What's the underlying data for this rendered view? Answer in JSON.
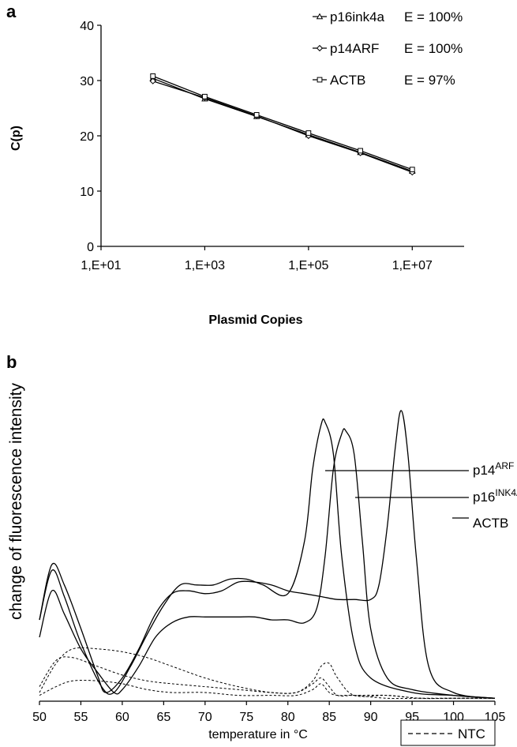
{
  "chart_data": [
    {
      "panel": "a",
      "type": "line",
      "x_scale": "log",
      "xlim": [
        10,
        100000000
      ],
      "ylim": [
        0,
        40
      ],
      "x_ticks": [
        10,
        1000,
        100000,
        10000000
      ],
      "x_tick_labels": [
        "1,E+01",
        "1,E+03",
        "1,E+05",
        "1,E+07"
      ],
      "y_ticks": [
        0,
        10,
        20,
        30,
        40
      ],
      "y_tick_labels": [
        "0",
        "10",
        "20",
        "30",
        "40"
      ],
      "xlabel": "Plasmid Copies",
      "ylabel": "C(p)",
      "legend_position": "top-right",
      "series": [
        {
          "name": "p16ink4a",
          "efficiency": "E = 100%",
          "marker": "triangle",
          "x": [
            100,
            1000,
            10000,
            100000,
            1000000,
            10000000
          ],
          "y": [
            30.4,
            26.7,
            23.5,
            20.2,
            17.0,
            13.6
          ]
        },
        {
          "name": "p14ARF",
          "efficiency": "E = 100%",
          "marker": "diamond",
          "x": [
            100,
            1000,
            10000,
            100000,
            1000000,
            10000000
          ],
          "y": [
            29.9,
            26.9,
            23.6,
            20.0,
            16.9,
            13.4
          ]
        },
        {
          "name": "ACTB",
          "efficiency": "E = 97%",
          "marker": "square",
          "x": [
            100,
            1000,
            10000,
            100000,
            1000000,
            10000000
          ],
          "y": [
            30.8,
            27.1,
            23.8,
            20.5,
            17.3,
            13.9
          ]
        }
      ]
    },
    {
      "panel": "b",
      "type": "line",
      "xlim": [
        50,
        105
      ],
      "x_ticks": [
        50,
        55,
        60,
        65,
        70,
        75,
        80,
        85,
        90,
        95,
        100,
        105
      ],
      "x_tick_labels": [
        "50",
        "55",
        "60",
        "65",
        "70",
        "75",
        "80",
        "85",
        "90",
        "95",
        "100",
        "105"
      ],
      "xlabel": "temperature in °C",
      "ylabel": "change of fluorescence intensity",
      "labels": {
        "p14": {
          "base": "p14",
          "sup": "ARF"
        },
        "p16": {
          "base": "p16",
          "sup": "INK4A"
        },
        "actb": "ACTB",
        "ntc": "NTC"
      },
      "series": [
        {
          "name": "p14ARF",
          "style": "solid",
          "peak_x": 84.5,
          "x": [
            50,
            51.5,
            53,
            55,
            57.5,
            59,
            61,
            63,
            65,
            67,
            69,
            71,
            73,
            75,
            77,
            80,
            82,
            83,
            84,
            84.5,
            85.5,
            86.5,
            88,
            90,
            95,
            100,
            105
          ],
          "y": [
            0.28,
            0.45,
            0.36,
            0.2,
            0.05,
            0.03,
            0.12,
            0.23,
            0.33,
            0.4,
            0.4,
            0.4,
            0.42,
            0.42,
            0.4,
            0.37,
            0.55,
            0.8,
            0.95,
            0.96,
            0.85,
            0.5,
            0.2,
            0.08,
            0.03,
            0.02,
            0.01
          ]
        },
        {
          "name": "p16INK4A",
          "style": "solid",
          "peak_x": 87,
          "x": [
            50,
            51.5,
            53,
            55,
            57,
            59,
            60,
            62,
            64,
            66,
            68,
            70,
            72,
            74,
            76,
            78,
            80,
            82,
            83.5,
            84.5,
            85.5,
            86.5,
            87,
            88,
            89,
            90,
            92,
            95,
            100,
            105
          ],
          "y": [
            0.22,
            0.38,
            0.3,
            0.18,
            0.1,
            0.03,
            0.04,
            0.12,
            0.22,
            0.27,
            0.29,
            0.29,
            0.29,
            0.29,
            0.29,
            0.28,
            0.28,
            0.27,
            0.32,
            0.5,
            0.8,
            0.92,
            0.93,
            0.85,
            0.55,
            0.25,
            0.08,
            0.04,
            0.02,
            0.01
          ]
        },
        {
          "name": "ACTB",
          "style": "solid",
          "peak_x": 93.7,
          "x": [
            50,
            51.5,
            53,
            55,
            57,
            58,
            60,
            62,
            64,
            66,
            68,
            70,
            72,
            74,
            76,
            78,
            80,
            82,
            84,
            86,
            88,
            90,
            91,
            92,
            93,
            93.7,
            94.5,
            95.5,
            97,
            100,
            105
          ],
          "y": [
            0.28,
            0.47,
            0.4,
            0.25,
            0.09,
            0.03,
            0.08,
            0.18,
            0.3,
            0.37,
            0.38,
            0.37,
            0.38,
            0.41,
            0.41,
            0.4,
            0.38,
            0.37,
            0.36,
            0.35,
            0.35,
            0.35,
            0.4,
            0.6,
            0.88,
            1.0,
            0.85,
            0.5,
            0.12,
            0.03,
            0.01
          ]
        },
        {
          "name": "NTC",
          "style": "dashed",
          "x": [
            50,
            52,
            54,
            57,
            60,
            63,
            66,
            70,
            74,
            78,
            81,
            83,
            84,
            85,
            86,
            88,
            92,
            96,
            100,
            105
          ],
          "y": [
            0.03,
            0.13,
            0.18,
            0.18,
            0.17,
            0.15,
            0.12,
            0.08,
            0.05,
            0.03,
            0.03,
            0.06,
            0.08,
            0.05,
            0.02,
            0.02,
            0.02,
            0.01,
            0.01,
            0.01
          ]
        },
        {
          "name": "NTC",
          "style": "dashed",
          "x": [
            50,
            52,
            54,
            57,
            60,
            63,
            66,
            70,
            74,
            78,
            81,
            83,
            84,
            85,
            86,
            88,
            92,
            96,
            100,
            105
          ],
          "y": [
            0.05,
            0.14,
            0.15,
            0.12,
            0.09,
            0.07,
            0.06,
            0.05,
            0.04,
            0.03,
            0.03,
            0.07,
            0.12,
            0.13,
            0.08,
            0.02,
            0.02,
            0.01,
            0.01,
            0.01
          ]
        },
        {
          "name": "NTC",
          "style": "dashed",
          "x": [
            50,
            52,
            54,
            57,
            60,
            63,
            66,
            70,
            74,
            78,
            81,
            83,
            84,
            85,
            86,
            88,
            92,
            96,
            100,
            105
          ],
          "y": [
            0.02,
            0.05,
            0.07,
            0.07,
            0.06,
            0.04,
            0.03,
            0.03,
            0.02,
            0.02,
            0.02,
            0.04,
            0.06,
            0.03,
            0.02,
            0.02,
            0.01,
            0.01,
            0.01,
            0.01
          ]
        }
      ]
    }
  ]
}
